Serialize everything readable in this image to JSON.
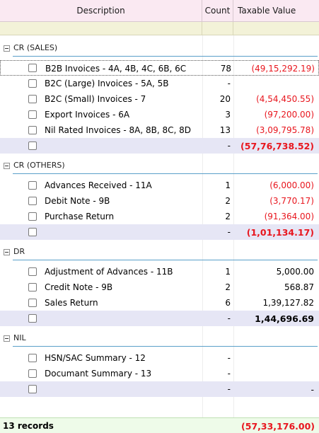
{
  "header": {
    "description": "Description",
    "count": "Count",
    "taxable_value": "Taxable Value"
  },
  "groups": [
    {
      "label": "CR  (SALES)",
      "rows": [
        {
          "desc": "B2B Invoices - 4A, 4B, 4C, 6B, 6C",
          "count": "78",
          "value": "(49,15,292.19)"
        },
        {
          "desc": "B2C (Large) Invoices - 5A, 5B",
          "count": "-",
          "value": ""
        },
        {
          "desc": "B2C (Small) Invoices - 7",
          "count": "20",
          "value": "(4,54,450.55)"
        },
        {
          "desc": "Export Invoices - 6A",
          "count": "3",
          "value": "(97,200.00)"
        },
        {
          "desc": "Nil Rated Invoices - 8A, 8B, 8C, 8D",
          "count": "13",
          "value": "(3,09,795.78)"
        }
      ],
      "subtotal": {
        "count": "-",
        "value": "(57,76,738.52)"
      }
    },
    {
      "label": "CR (OTHERS)",
      "rows": [
        {
          "desc": "Advances Received - 11A",
          "count": "1",
          "value": "(6,000.00)"
        },
        {
          "desc": "Debit Note - 9B",
          "count": "2",
          "value": "(3,770.17)"
        },
        {
          "desc": "Purchase Return",
          "count": "2",
          "value": "(91,364.00)"
        }
      ],
      "subtotal": {
        "count": "-",
        "value": "(1,01,134.17)"
      }
    },
    {
      "label": "DR",
      "rows": [
        {
          "desc": "Adjustment of Advances - 11B",
          "count": "1",
          "value": "5,000.00"
        },
        {
          "desc": "Credit Note - 9B",
          "count": "2",
          "value": "568.87"
        },
        {
          "desc": "Sales Return",
          "count": "6",
          "value": "1,39,127.82"
        }
      ],
      "subtotal": {
        "count": "-",
        "value": "1,44,696.69"
      }
    },
    {
      "label": "NIL",
      "rows": [
        {
          "desc": "HSN/SAC Summary - 12",
          "count": "-",
          "value": ""
        },
        {
          "desc": "Documant Summary - 13",
          "count": "-",
          "value": ""
        }
      ],
      "subtotal": {
        "count": "-",
        "value": "-"
      }
    }
  ],
  "footer": {
    "records": "13 records",
    "total": "(57,33,176.00)"
  },
  "colors": {
    "header_bg": "#fae9f2",
    "filter_bg": "#f3f2d8",
    "subtotal_bg": "#e6e6f5",
    "footer_bg": "#eefbe9",
    "negative": "#e8161e",
    "group_rule": "#5a9fc9"
  }
}
